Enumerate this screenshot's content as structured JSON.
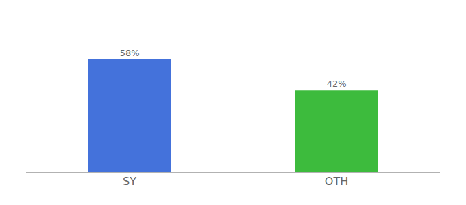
{
  "chart_data": {
    "type": "bar",
    "categories": [
      "SY",
      "OTH"
    ],
    "values": [
      58,
      42
    ],
    "colors": [
      "#4472db",
      "#3dbb3d"
    ],
    "ylim": [
      0,
      75
    ],
    "tick_labels": "x",
    "data_labels": true,
    "value_labels": [
      "58%",
      "42%"
    ]
  }
}
